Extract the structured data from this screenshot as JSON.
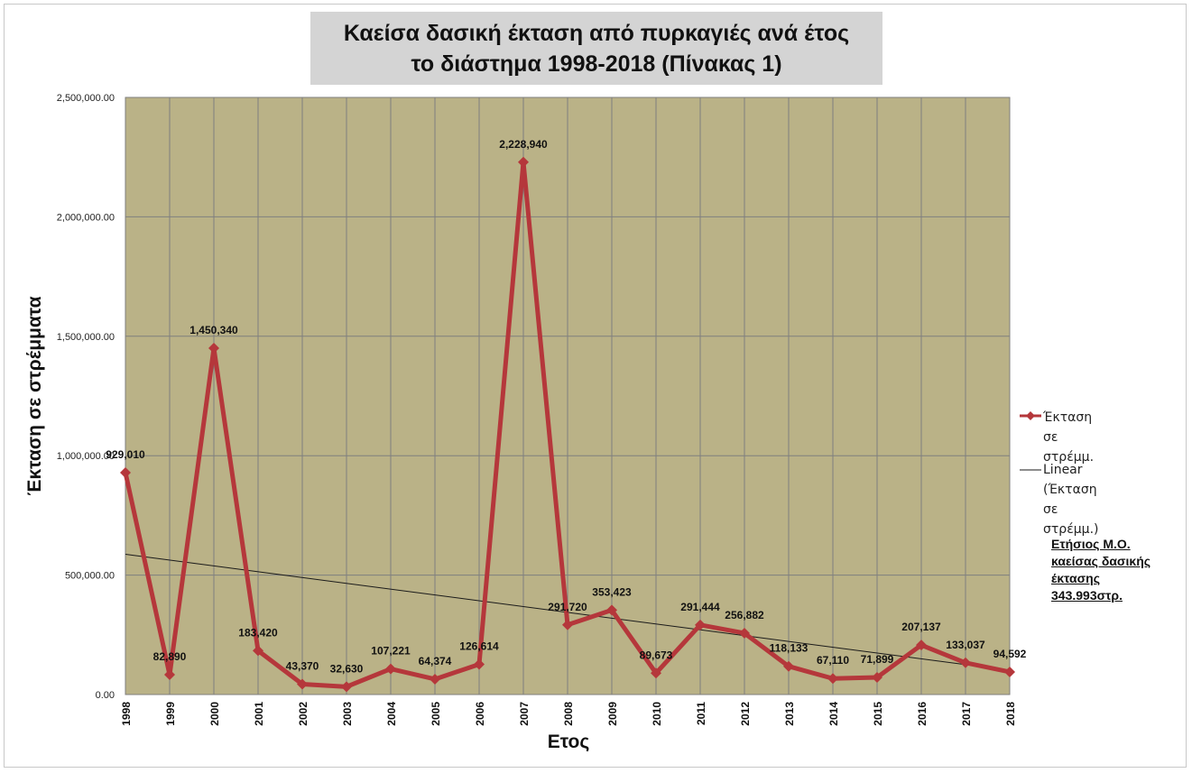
{
  "chart_data": {
    "type": "line",
    "title_lines": [
      "Καείσα δασική έκταση από πυρκαγιές ανά έτος",
      "το διάστημα 1998-2018 (Πίνακας 1)"
    ],
    "xlabel": "Ετος",
    "ylabel": "Έκταση σε στρέμματα",
    "categories": [
      "1998",
      "1999",
      "2000",
      "2001",
      "2002",
      "2003",
      "2004",
      "2005",
      "2006",
      "2007",
      "2008",
      "2009",
      "2010",
      "2011",
      "2012",
      "2013",
      "2014",
      "2015",
      "2016",
      "2017",
      "2018"
    ],
    "ylim": [
      0,
      2500000
    ],
    "yticks": [
      0,
      500000,
      1000000,
      1500000,
      2000000,
      2500000
    ],
    "ytick_labels": [
      "0.00",
      "500,000.00",
      "1,000,000.00",
      "1,500,000.00",
      "2,000,000.00",
      "2,500,000.00"
    ],
    "grid": true,
    "legend_position": "right",
    "series": [
      {
        "name": "Έκταση σε στρέμμ.",
        "color": "#b5373b",
        "marker": "diamond",
        "values": [
          929010,
          82890,
          1450340,
          183420,
          43370,
          32630,
          107221,
          64374,
          126614,
          2228940,
          291720,
          353423,
          89673,
          291444,
          256882,
          118133,
          67110,
          71899,
          207137,
          133037,
          94592
        ],
        "data_labels": [
          "929,010",
          "82,890",
          "1,450,340",
          "183,420",
          "43,370",
          "32,630",
          "107,221",
          "64,374",
          "126,614",
          "2,228,940",
          "291,720",
          "353,423",
          "89,673",
          "291,444",
          "256,882",
          "118,133",
          "67,110",
          "71,899",
          "207,137",
          "133,037",
          "94,592"
        ]
      }
    ],
    "trendline": {
      "name_line1": "Linear (Έκταση σε",
      "name_line2": "στρέμμ.)",
      "color": "#1a1a1a",
      "type": "linear"
    },
    "plot_background": "#bab287",
    "grid_color": "#7f7f7f"
  },
  "annotation": {
    "lines": [
      "Ετήσιος Μ.Ο.",
      "καείσας δασικής",
      "έκτασης",
      "343.993στρ."
    ]
  }
}
